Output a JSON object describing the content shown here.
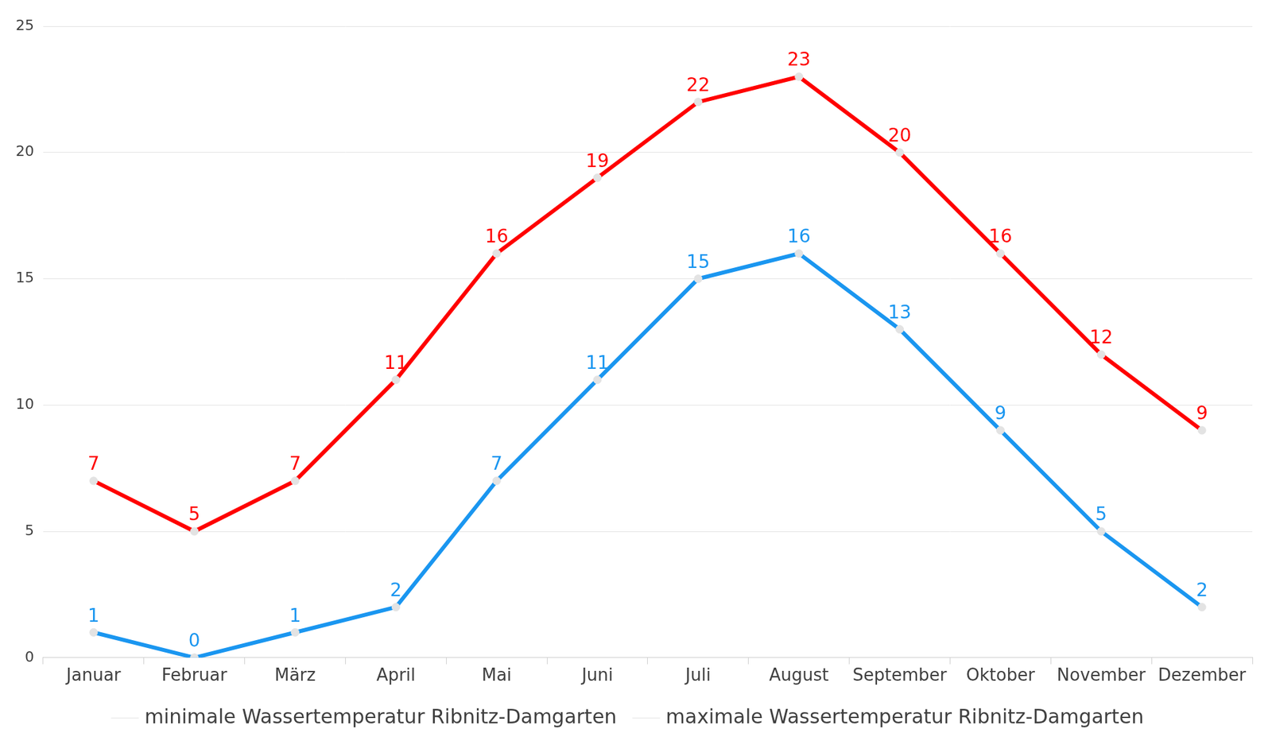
{
  "chart_data": {
    "type": "line",
    "categories": [
      "Januar",
      "Februar",
      "März",
      "April",
      "Mai",
      "Juni",
      "Juli",
      "August",
      "September",
      "Oktober",
      "November",
      "Dezember"
    ],
    "series": [
      {
        "name": "minimale Wassertemperatur Ribnitz-Damgarten",
        "color": "#1a96f0",
        "marker": "circle",
        "values": [
          1,
          0,
          1,
          2,
          7,
          11,
          15,
          16,
          13,
          9,
          5,
          2
        ]
      },
      {
        "name": "maximale Wassertemperatur Ribnitz-Damgarten",
        "color": "#ff0000",
        "marker": "circle",
        "values": [
          7,
          5,
          7,
          11,
          16,
          19,
          22,
          23,
          20,
          16,
          12,
          9
        ]
      }
    ],
    "ylim": [
      0,
      25
    ],
    "yticks": [
      0,
      5,
      10,
      15,
      20,
      25
    ],
    "grid": true,
    "legend": "bottom",
    "data_labels": true
  }
}
